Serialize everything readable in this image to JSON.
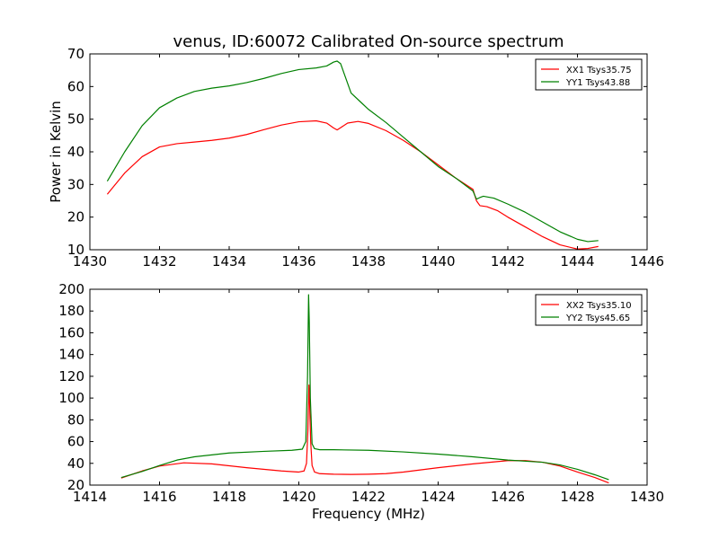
{
  "figure": {
    "title": "venus, ID:60072 Calibrated On-source spectrum",
    "ylabel": "Power in Kelvin",
    "xlabel": "Frequency (MHz)"
  },
  "colors": {
    "xx": "#ff0000",
    "yy": "#008000",
    "axes": "#000000",
    "background": "#ffffff"
  },
  "chart_data": [
    {
      "type": "line",
      "title": "venus, ID:60072 Calibrated On-source spectrum",
      "xlabel": "",
      "ylabel": "Power in Kelvin",
      "xlim": [
        1430,
        1446
      ],
      "ylim": [
        10,
        70
      ],
      "xticks": [
        "1430",
        "1432",
        "1434",
        "1436",
        "1438",
        "1440",
        "1442",
        "1444",
        "1446"
      ],
      "yticks": [
        "10",
        "20",
        "30",
        "40",
        "50",
        "60",
        "70"
      ],
      "grid": false,
      "legend_position": "top-right",
      "series": [
        {
          "name": "XX1 Tsys35.75",
          "color": "#ff0000",
          "x": [
            1430.5,
            1431.0,
            1431.5,
            1432.0,
            1432.5,
            1433.0,
            1433.5,
            1434.0,
            1434.5,
            1435.0,
            1435.5,
            1436.0,
            1436.5,
            1436.8,
            1437.0,
            1437.1,
            1437.2,
            1437.4,
            1437.7,
            1438.0,
            1438.5,
            1439.0,
            1439.5,
            1440.0,
            1440.5,
            1441.0,
            1441.1,
            1441.2,
            1441.4,
            1441.7,
            1442.0,
            1442.5,
            1443.0,
            1443.5,
            1444.0,
            1444.3,
            1444.6
          ],
          "y": [
            27,
            33.5,
            38.5,
            41.5,
            42.5,
            43,
            43.5,
            44.2,
            45.3,
            46.8,
            48.2,
            49.2,
            49.5,
            48.8,
            47.3,
            46.7,
            47.4,
            48.8,
            49.3,
            48.7,
            46.5,
            43.5,
            40,
            36,
            32,
            28.5,
            25,
            23.5,
            23.2,
            22,
            20,
            17,
            14,
            11.5,
            10.2,
            10.4,
            11
          ]
        },
        {
          "name": "YY1 Tsys43.88",
          "color": "#008000",
          "x": [
            1430.5,
            1431.0,
            1431.5,
            1432.0,
            1432.5,
            1433.0,
            1433.5,
            1434.0,
            1434.5,
            1435.0,
            1435.5,
            1436.0,
            1436.5,
            1436.8,
            1437.0,
            1437.1,
            1437.2,
            1437.3,
            1437.5,
            1437.8,
            1438.0,
            1438.5,
            1439.0,
            1439.5,
            1440.0,
            1440.5,
            1441.0,
            1441.1,
            1441.2,
            1441.3,
            1441.6,
            1442.0,
            1442.5,
            1443.0,
            1443.5,
            1444.0,
            1444.3,
            1444.6
          ],
          "y": [
            31,
            40,
            48,
            53.5,
            56.5,
            58.5,
            59.5,
            60.2,
            61.2,
            62.5,
            64,
            65.2,
            65.7,
            66.3,
            67.5,
            67.8,
            67,
            64,
            58,
            55,
            53,
            49,
            44.5,
            40,
            35.5,
            32,
            28,
            25.5,
            26,
            26.4,
            25.8,
            24,
            21.5,
            18.5,
            15.5,
            13.2,
            12.5,
            12.8
          ]
        }
      ]
    },
    {
      "type": "line",
      "title": "",
      "xlabel": "Frequency (MHz)",
      "ylabel": "",
      "xlim": [
        1414,
        1430
      ],
      "ylim": [
        20,
        200
      ],
      "xticks": [
        "1414",
        "1416",
        "1418",
        "1420",
        "1422",
        "1424",
        "1426",
        "1428",
        "1430"
      ],
      "yticks": [
        "20",
        "40",
        "60",
        "80",
        "100",
        "120",
        "140",
        "160",
        "180",
        "200"
      ],
      "grid": false,
      "legend_position": "top-right",
      "series": [
        {
          "name": "XX2 Tsys35.10",
          "color": "#ff0000",
          "x": [
            1414.9,
            1415.5,
            1416.0,
            1416.7,
            1417.5,
            1418.5,
            1419.5,
            1420.0,
            1420.15,
            1420.22,
            1420.26,
            1420.29,
            1420.31,
            1420.34,
            1420.38,
            1420.45,
            1420.6,
            1421.0,
            1421.5,
            1422.0,
            1422.5,
            1423.0,
            1424.0,
            1425.0,
            1426.0,
            1426.5,
            1427.0,
            1427.5,
            1428.0,
            1428.5,
            1428.9
          ],
          "y": [
            26.5,
            33,
            37.5,
            40.5,
            39.5,
            36,
            33,
            32,
            33,
            40,
            70,
            112,
            95,
            60,
            38,
            32,
            30.5,
            30,
            29.8,
            30,
            30.5,
            32,
            36,
            39.5,
            42.5,
            42.5,
            41,
            37.5,
            32,
            27,
            22
          ]
        },
        {
          "name": "YY2 Tsys45.65",
          "color": "#008000",
          "x": [
            1414.9,
            1415.5,
            1416.0,
            1416.5,
            1417.0,
            1418.0,
            1419.0,
            1419.8,
            1420.1,
            1420.2,
            1420.25,
            1420.28,
            1420.3,
            1420.33,
            1420.38,
            1420.45,
            1420.6,
            1421.0,
            1422.0,
            1423.0,
            1424.0,
            1425.0,
            1426.0,
            1427.0,
            1427.5,
            1428.0,
            1428.5,
            1428.9
          ],
          "y": [
            27,
            32.5,
            38,
            43,
            46,
            49.5,
            51,
            52,
            53,
            60,
            120,
            195,
            170,
            100,
            58,
            53.5,
            52.5,
            52.5,
            52,
            50.5,
            48.5,
            46,
            43,
            41,
            38.5,
            34.5,
            29.5,
            25
          ]
        }
      ]
    }
  ]
}
